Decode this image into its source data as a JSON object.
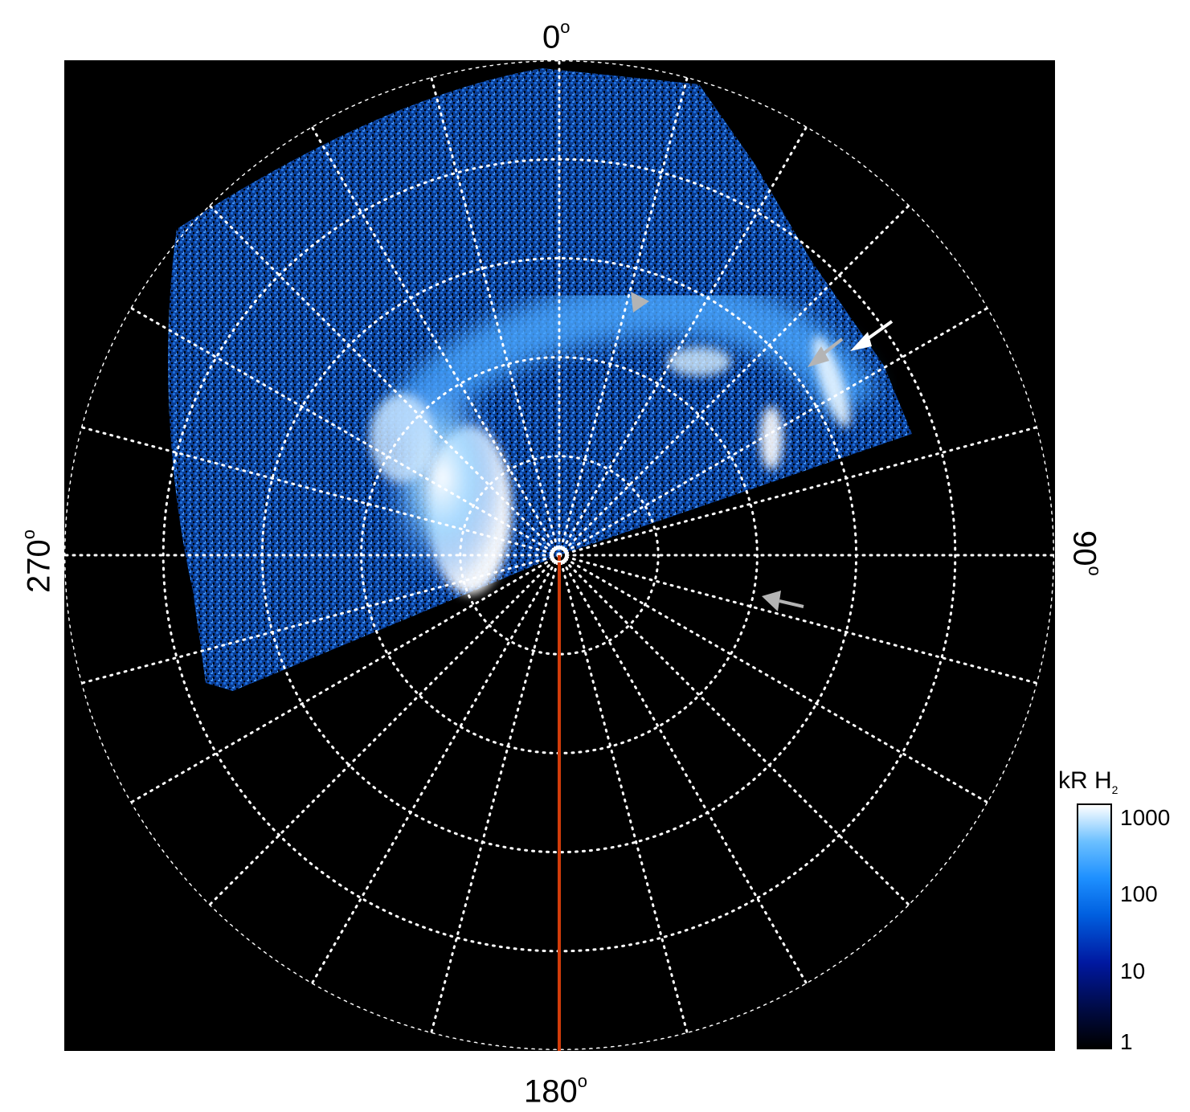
{
  "axis_labels": {
    "top": "0",
    "bottom": "180",
    "left": "270",
    "right": "90",
    "degree_symbol": "o"
  },
  "colorbar": {
    "title_main": "kR H",
    "title_sub": "2",
    "ticks": [
      "1000",
      "100",
      "10",
      "1"
    ],
    "scale": "log",
    "colors": [
      "#000000",
      "#000a40",
      "#0018a0",
      "#0060e0",
      "#1e90ff",
      "#6cc0ff",
      "#ffffff"
    ]
  },
  "colors": {
    "background": "#000000",
    "grid": "#ffffff",
    "meridian_line": "#d23c0a",
    "arrow_white": "#ffffff",
    "arrow_gray": "#b4b4b4"
  },
  "features": {
    "grid": "dotted polar grid",
    "highlighted_meridian": "180",
    "arrows": [
      "white",
      "gray",
      "gray",
      "gray"
    ]
  }
}
